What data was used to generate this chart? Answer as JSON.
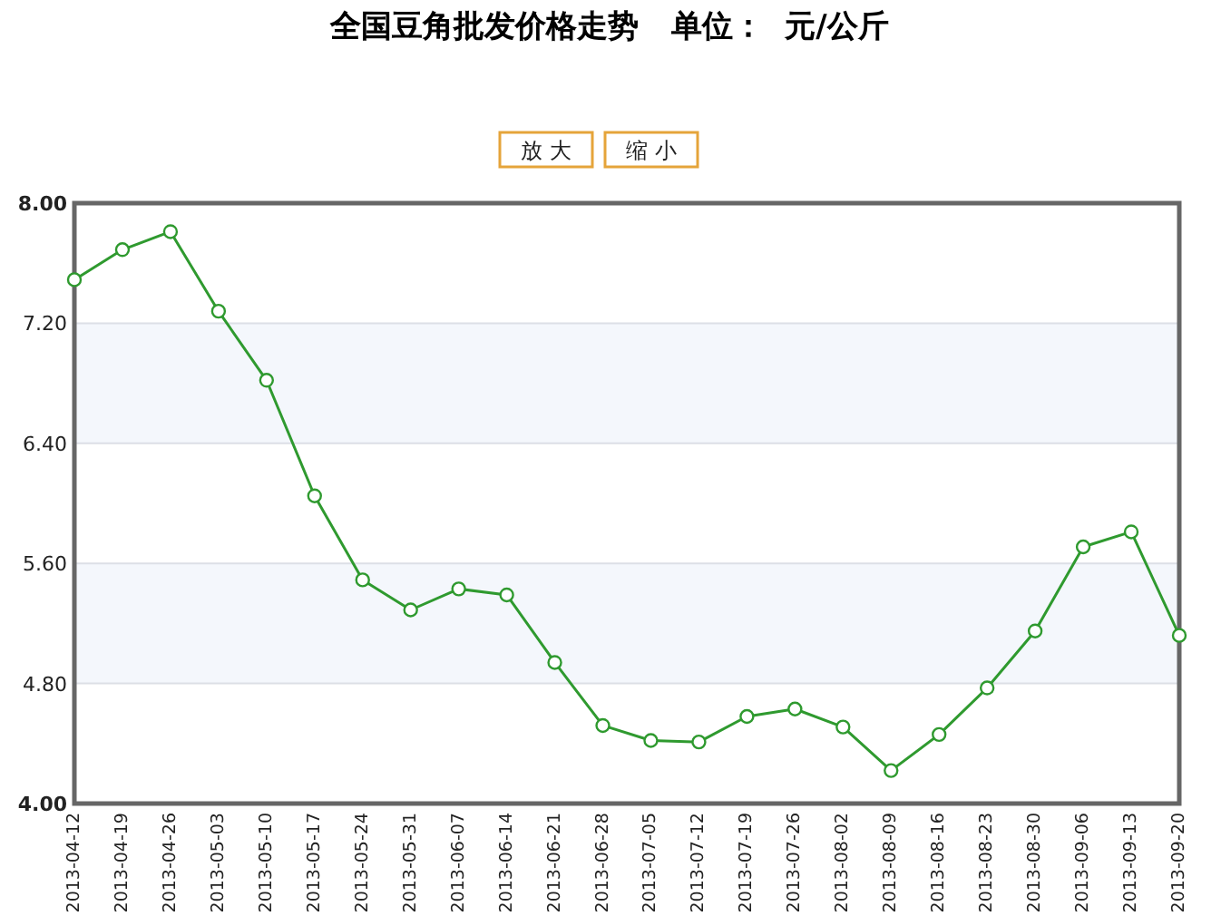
{
  "chart_data": {
    "type": "line",
    "title": "全国豆角批发价格走势   单位：  元/公斤",
    "annotations": [
      "放 大",
      "缩 小"
    ],
    "categories": [
      "2013-04-12",
      "2013-04-19",
      "2013-04-26",
      "2013-05-03",
      "2013-05-10",
      "2013-05-17",
      "2013-05-24",
      "2013-05-31",
      "2013-06-07",
      "2013-06-14",
      "2013-06-21",
      "2013-06-28",
      "2013-07-05",
      "2013-07-12",
      "2013-07-19",
      "2013-07-26",
      "2013-08-02",
      "2013-08-09",
      "2013-08-16",
      "2013-08-23",
      "2013-08-30",
      "2013-09-06",
      "2013-09-13",
      "2013-09-20"
    ],
    "series": [
      {
        "color": "#2f9a2f",
        "values": [
          7.49,
          7.69,
          7.81,
          7.28,
          6.82,
          6.05,
          5.49,
          5.29,
          5.43,
          5.39,
          4.94,
          4.52,
          4.42,
          4.41,
          4.58,
          4.63,
          4.51,
          4.22,
          4.46,
          4.77,
          5.15,
          5.71,
          5.81,
          5.12
        ]
      }
    ],
    "ylim": [
      4,
      8
    ],
    "yticks": [
      {
        "value": 4,
        "label": "4.00"
      },
      {
        "value": 4.8,
        "label": "4.80"
      },
      {
        "value": 5.6,
        "label": "5.60"
      },
      {
        "value": 6.4,
        "label": "6.40"
      },
      {
        "value": 7.2,
        "label": "7.20"
      },
      {
        "value": 8,
        "label": "8.00"
      }
    ],
    "grid": "y",
    "marker": "circle",
    "bands": [
      {
        "axis": "y",
        "from": 6.4,
        "to": 7.2,
        "color": "#f4f7fc"
      },
      {
        "axis": "y",
        "from": 4.8,
        "to": 5.6,
        "color": "#f4f7fc"
      }
    ]
  }
}
